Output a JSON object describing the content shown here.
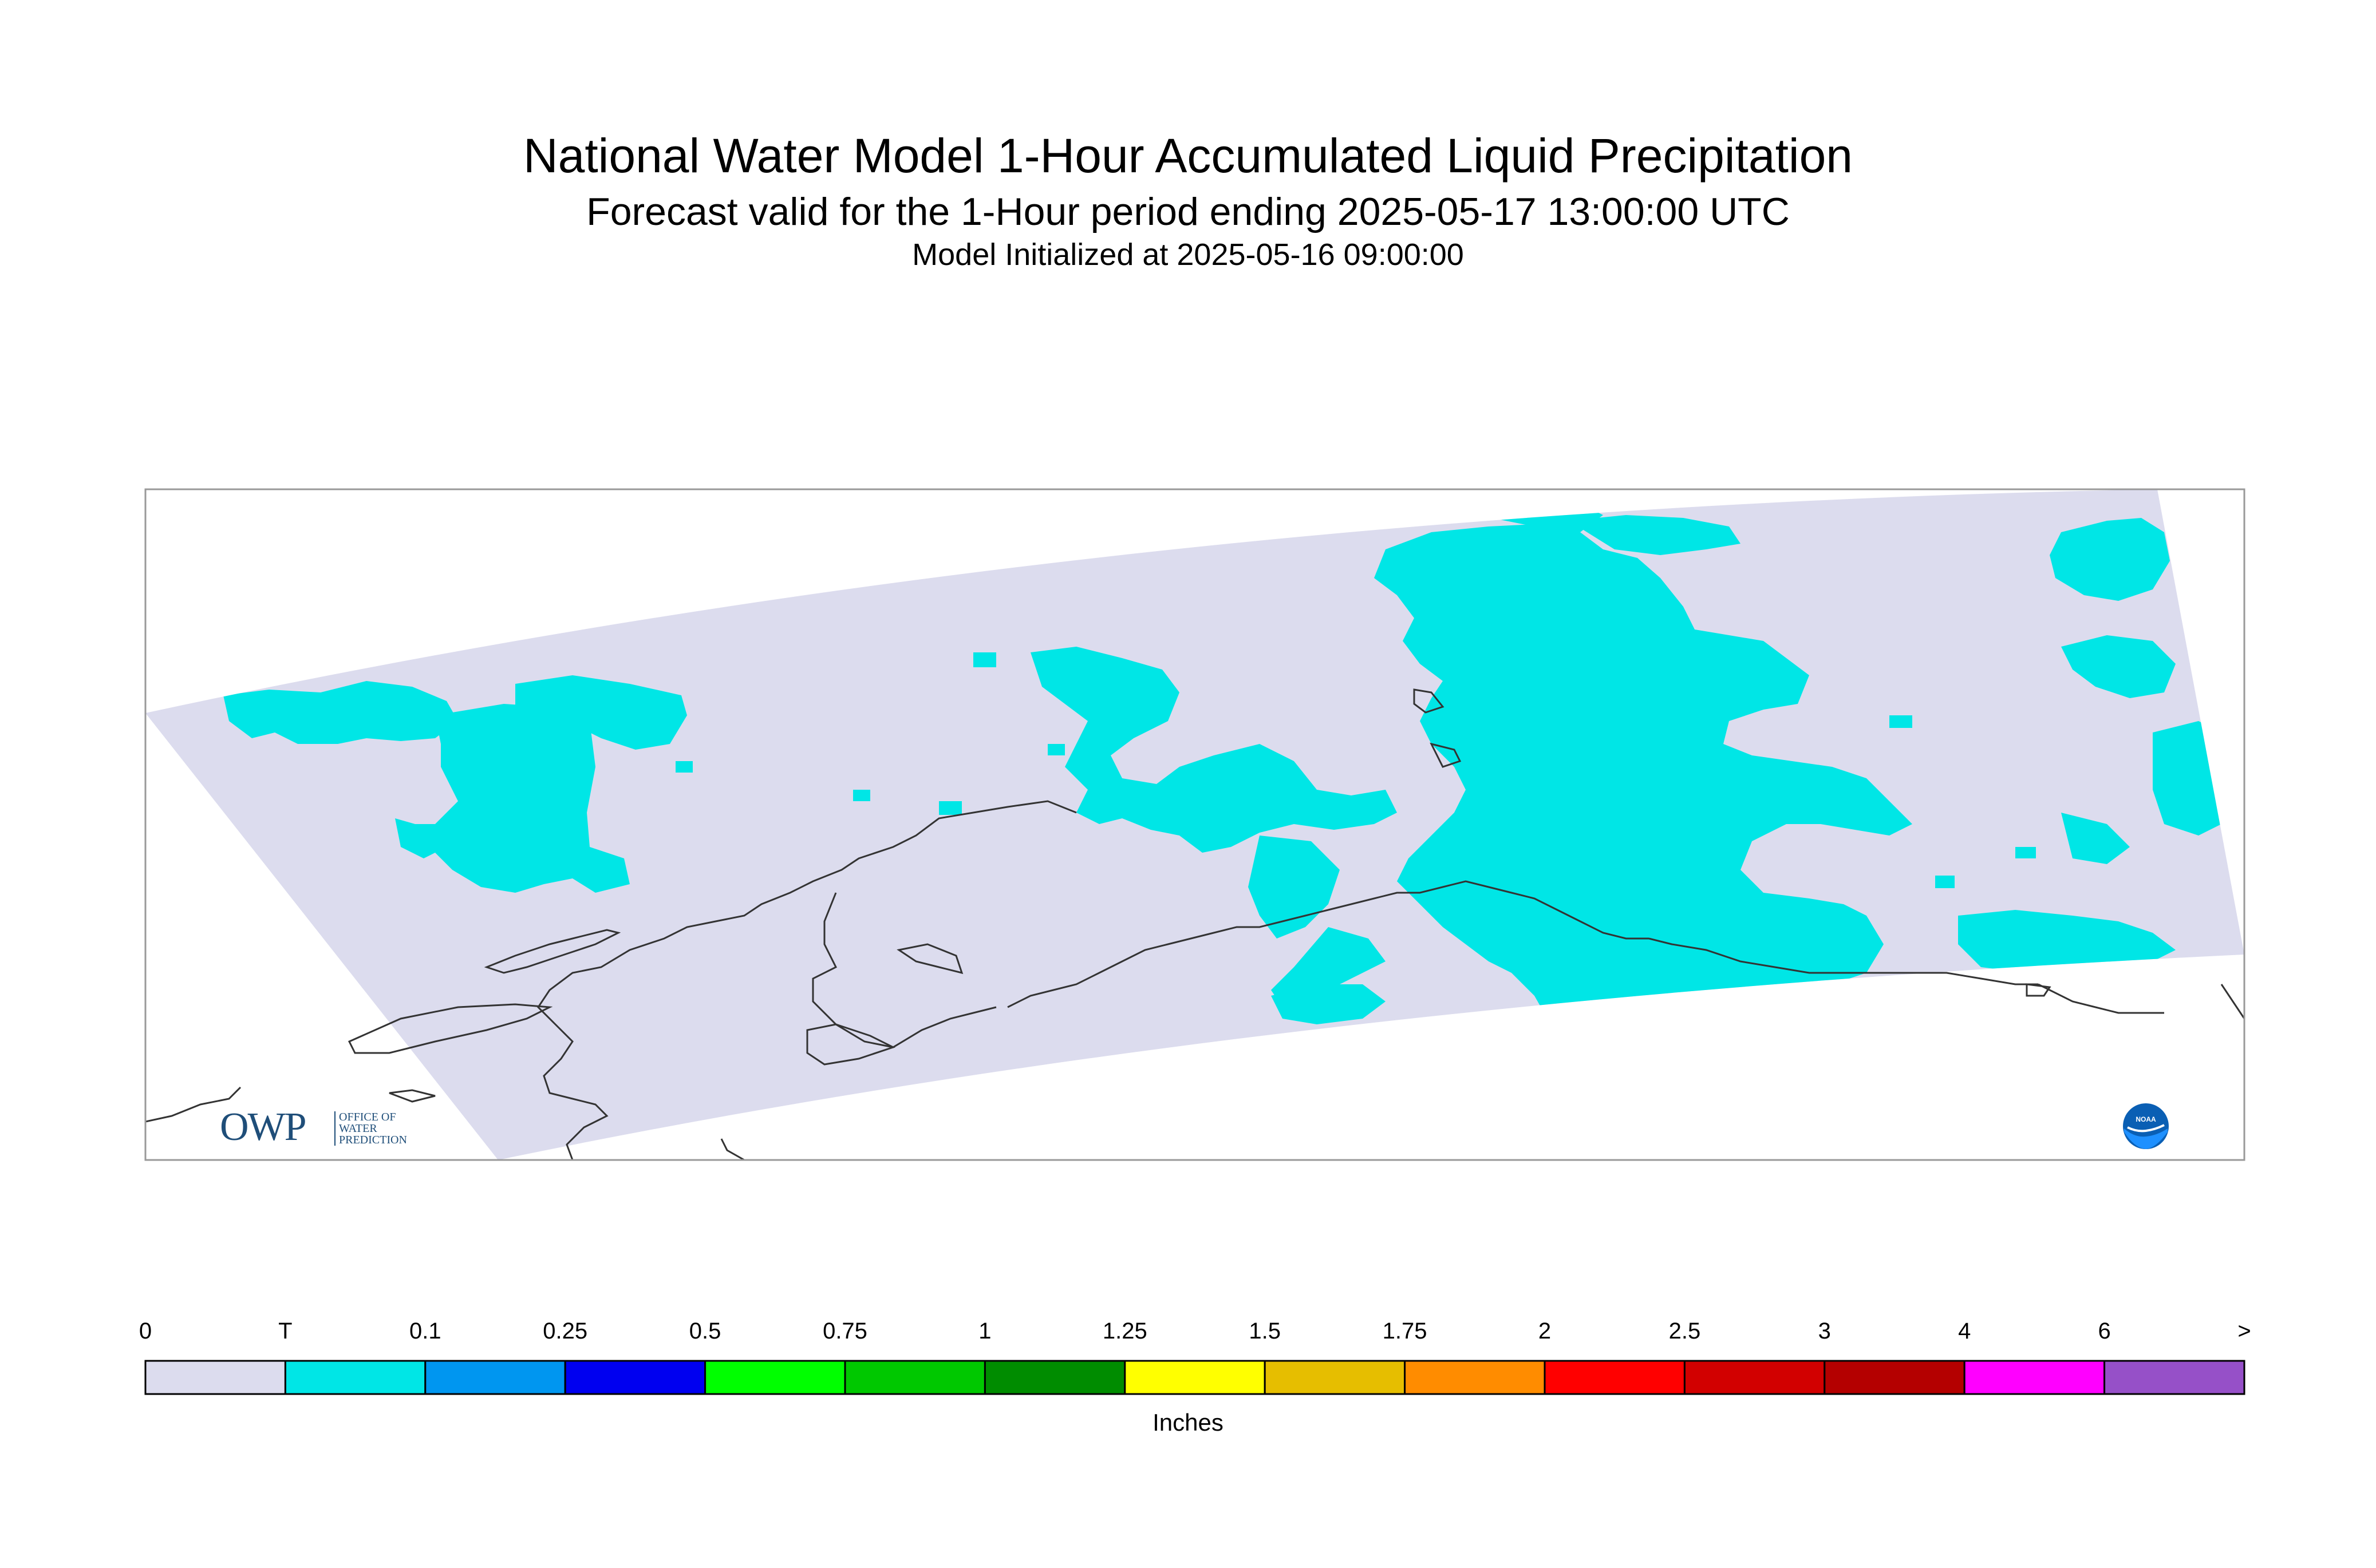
{
  "title": "National Water Model 1-Hour Accumulated Liquid Precipitation",
  "subtitle": "Forecast valid for the 1-Hour period ending 2025-05-17 13:00:00 UTC",
  "init_line": "Model Initialized at 2025-05-16 09:00:00",
  "map": {
    "region": "Alaska",
    "colors": {
      "domain_no_precip": "#dcdcee",
      "trace_precip": "#00e6e6",
      "coastline": "#333333",
      "frame": "#999999"
    }
  },
  "logos": {
    "owp": {
      "letters": "OWP",
      "lines": [
        "OFFICE OF",
        "WATER",
        "PREDICTION"
      ]
    },
    "noaa": {
      "text": "NOAA"
    }
  },
  "legend": {
    "unit_label": "Inches",
    "tick_labels": [
      "0",
      "T",
      "0.1",
      "0.25",
      "0.5",
      "0.75",
      "1",
      "1.25",
      "1.5",
      "1.75",
      "2",
      "2.5",
      "3",
      "4",
      "6",
      ">"
    ],
    "bins": [
      {
        "color": "#dcdcee"
      },
      {
        "color": "#00e6e6"
      },
      {
        "color": "#0096f0"
      },
      {
        "color": "#0000f0"
      },
      {
        "color": "#00ff00"
      },
      {
        "color": "#00c800"
      },
      {
        "color": "#008c00"
      },
      {
        "color": "#ffff00"
      },
      {
        "color": "#e6be00"
      },
      {
        "color": "#ff8c00"
      },
      {
        "color": "#ff0000"
      },
      {
        "color": "#d20000"
      },
      {
        "color": "#b40000"
      },
      {
        "color": "#ff00ff"
      },
      {
        "color": "#9650c8"
      }
    ]
  }
}
